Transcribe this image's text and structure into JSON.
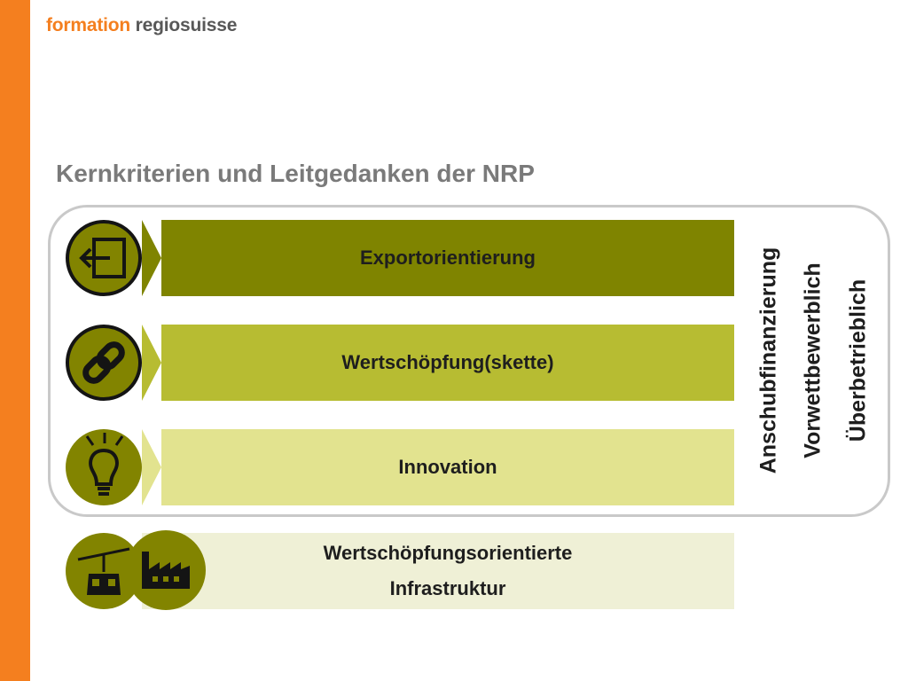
{
  "logo": {
    "part1": "formation",
    "part2": "regiosuisse"
  },
  "title": "Kernkriterien und Leitgedanken der NRP",
  "rows": [
    {
      "label": "Exportorientierung",
      "icon": "export-arrow-icon",
      "color": "#7f8400"
    },
    {
      "label": "Wertschöpfung(skette)",
      "icon": "chain-link-icon",
      "color": "#b7bc32"
    },
    {
      "label": "Innovation",
      "icon": "lightbulb-icon",
      "color": "#e2e38f"
    },
    {
      "label_line1": "Wertschöpfungsorientierte",
      "label_line2": "Infrastruktur",
      "icons": [
        "cable-car-icon",
        "factory-icon"
      ],
      "color": "#eff0d6"
    }
  ],
  "side_labels": [
    "Anschubfinanzierung",
    "Vorwettbewerblich",
    "Überbetrieblich"
  ],
  "colors": {
    "accent": "#f47f1f",
    "icon_fill": "#828400",
    "frame": "#c9c9c9"
  }
}
